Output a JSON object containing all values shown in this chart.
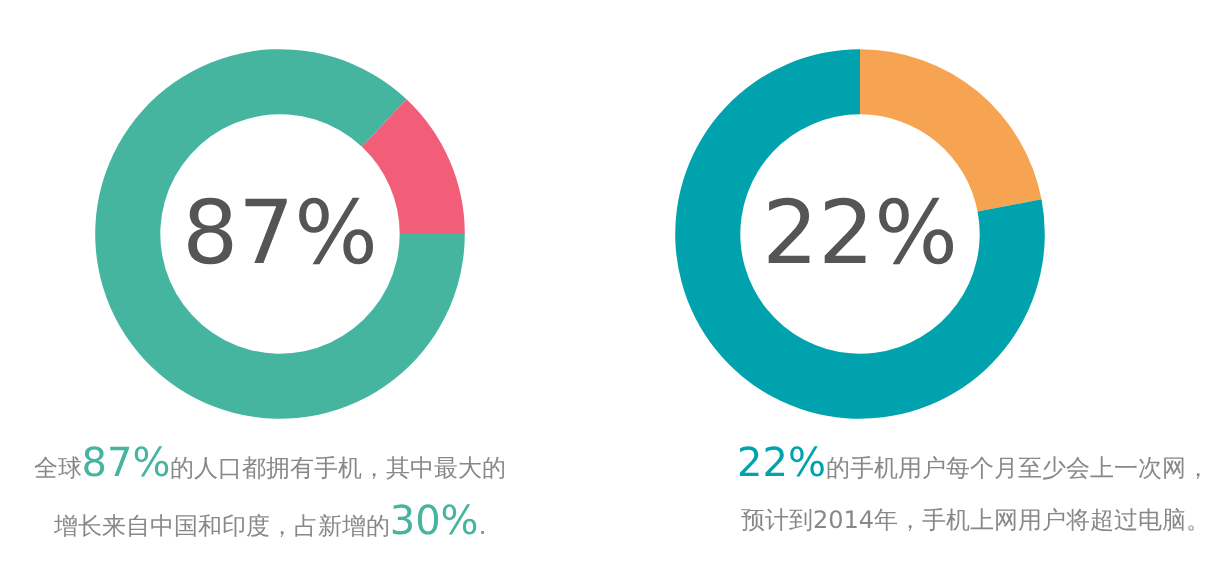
{
  "chart_data": [
    {
      "type": "donut",
      "categories": [
        null,
        null
      ],
      "values": [
        87,
        13
      ],
      "colors": [
        "#45b5a0",
        "#f25d78"
      ],
      "annotations": [
        "87%",
        "全球87%的人口都拥有手机，其中最大的",
        "增长来自中国和印度，占新增的30%."
      ]
    },
    {
      "type": "donut",
      "categories": [
        null,
        null
      ],
      "values": [
        22,
        78
      ],
      "colors": [
        "#f7a452",
        "#00a3ad"
      ],
      "annotations": [
        "22%",
        "22%的手机用户每个月至少会上一次网，",
        "预计到2014年，手机上网用户将超过电脑。"
      ]
    }
  ]
}
